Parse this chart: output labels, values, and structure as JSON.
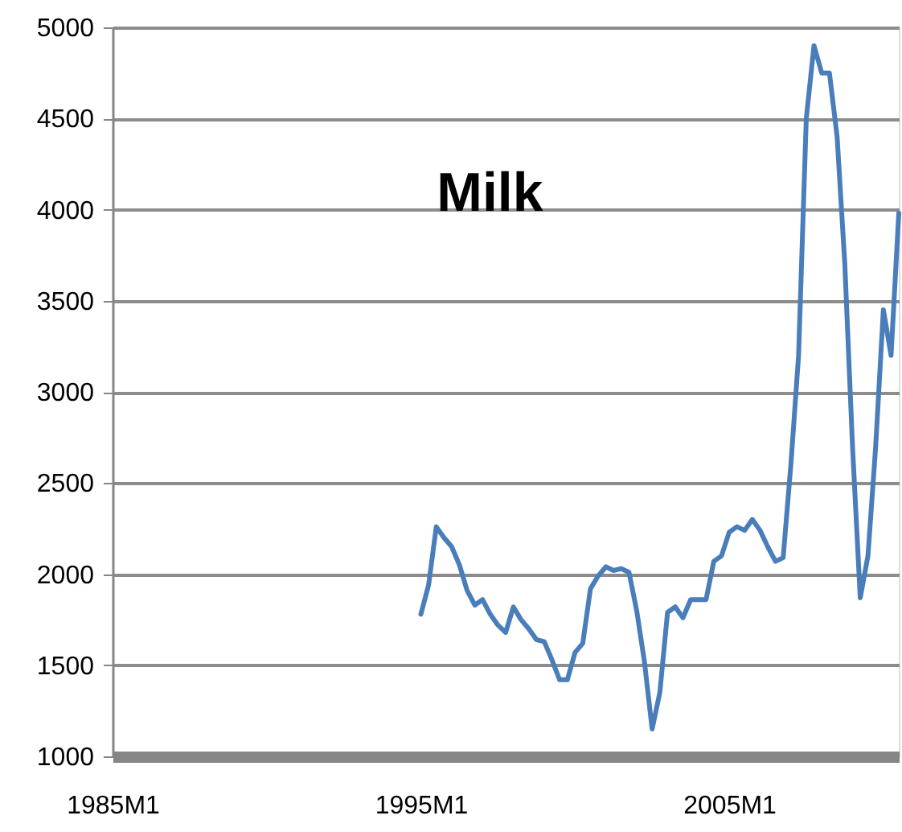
{
  "chart_data": {
    "type": "line",
    "title": "Milk",
    "categories": [
      "1985M1",
      null,
      null,
      null,
      null,
      null,
      null,
      null,
      null,
      null,
      null,
      null,
      null,
      null,
      null,
      null,
      null,
      null,
      null,
      null,
      null,
      null,
      null,
      null,
      null,
      null,
      null,
      null,
      null,
      null,
      null,
      null,
      null,
      null,
      null,
      null,
      null,
      null,
      null,
      null,
      "1995M1",
      null,
      null,
      null,
      null,
      null,
      null,
      null,
      null,
      null,
      null,
      null,
      null,
      null,
      null,
      null,
      null,
      null,
      null,
      null,
      null,
      null,
      null,
      null,
      null,
      null,
      null,
      null,
      null,
      null,
      null,
      null,
      null,
      null,
      null,
      null,
      null,
      null,
      null,
      null,
      "2005M1",
      null,
      null,
      null,
      null,
      null,
      null,
      null,
      null,
      null,
      null,
      null,
      null,
      null,
      null,
      null,
      null,
      null,
      null,
      null,
      null,
      null,
      null
    ],
    "series": [
      {
        "color": "#4a7ebb",
        "values": [
          null,
          null,
          null,
          null,
          null,
          null,
          null,
          null,
          null,
          null,
          null,
          null,
          null,
          null,
          null,
          null,
          null,
          null,
          null,
          null,
          null,
          null,
          null,
          null,
          null,
          null,
          null,
          null,
          null,
          null,
          null,
          null,
          null,
          null,
          null,
          null,
          null,
          null,
          null,
          null,
          1780,
          1940,
          2260,
          2200,
          2150,
          2050,
          1910,
          1830,
          1860,
          1780,
          1720,
          1680,
          1820,
          1750,
          1700,
          1640,
          1630,
          1530,
          1420,
          1420,
          1570,
          1620,
          1920,
          1990,
          2040,
          2020,
          2030,
          2010,
          1800,
          1520,
          1150,
          1350,
          1790,
          1820,
          1760,
          1860,
          1860,
          1860,
          2070,
          2100,
          2230,
          2260,
          2240,
          2300,
          2240,
          2150,
          2070,
          2090,
          2600,
          3200,
          4500,
          4900,
          4750,
          4750,
          4400,
          3700,
          2700,
          1870,
          2100,
          2700,
          3450,
          3200,
          3980
        ]
      }
    ],
    "ylim": [
      1000,
      5000
    ],
    "yticks": [
      1000,
      1500,
      2000,
      2500,
      3000,
      3500,
      4000,
      4500,
      5000
    ],
    "grid": "y",
    "marker": "none",
    "line_style": "solid"
  }
}
